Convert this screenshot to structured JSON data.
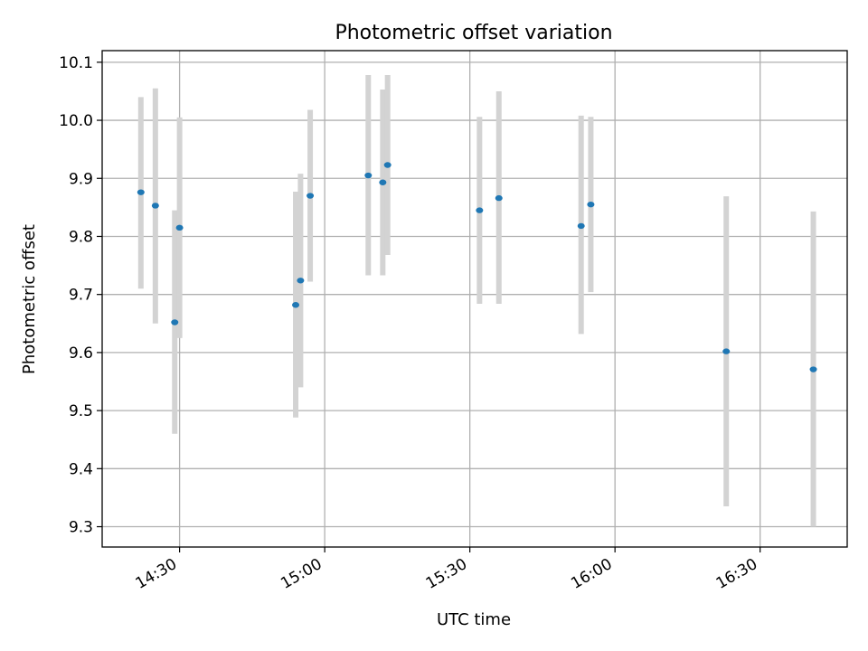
{
  "chart_data": {
    "type": "scatter",
    "title": "Photometric offset variation",
    "xlabel": "UTC time",
    "ylabel": "Photometric offset",
    "xlim": [
      "14:14",
      "16:48"
    ],
    "ylim": [
      9.265,
      10.12
    ],
    "grid": true,
    "x_ticks": [
      "14:30",
      "15:00",
      "15:30",
      "16:00",
      "16:30"
    ],
    "y_ticks": [
      9.3,
      9.4,
      9.5,
      9.6,
      9.7,
      9.8,
      9.9,
      10.0,
      10.1
    ],
    "y_tick_labels": [
      "9.3",
      "9.4",
      "9.5",
      "9.6",
      "9.7",
      "9.8",
      "9.9",
      "10.0",
      "10.1"
    ],
    "point_color": "#1f77b4",
    "errorbar_color": "#d3d3d3",
    "points": [
      {
        "x": "14:22",
        "y": 9.876,
        "ylo": 9.71,
        "yhi": 10.04
      },
      {
        "x": "14:25",
        "y": 9.853,
        "ylo": 9.65,
        "yhi": 10.055
      },
      {
        "x": "14:29",
        "y": 9.652,
        "ylo": 9.46,
        "yhi": 9.845
      },
      {
        "x": "14:30",
        "y": 9.815,
        "ylo": 9.625,
        "yhi": 10.005
      },
      {
        "x": "14:54",
        "y": 9.682,
        "ylo": 9.488,
        "yhi": 9.877
      },
      {
        "x": "14:55",
        "y": 9.724,
        "ylo": 9.54,
        "yhi": 9.908
      },
      {
        "x": "14:57",
        "y": 9.87,
        "ylo": 9.722,
        "yhi": 10.018
      },
      {
        "x": "15:09",
        "y": 9.905,
        "ylo": 9.733,
        "yhi": 10.078
      },
      {
        "x": "15:12",
        "y": 9.893,
        "ylo": 9.733,
        "yhi": 10.053
      },
      {
        "x": "15:13",
        "y": 9.923,
        "ylo": 9.768,
        "yhi": 10.078
      },
      {
        "x": "15:32",
        "y": 9.845,
        "ylo": 9.684,
        "yhi": 10.006
      },
      {
        "x": "15:36",
        "y": 9.866,
        "ylo": 9.684,
        "yhi": 10.05
      },
      {
        "x": "15:53",
        "y": 9.818,
        "ylo": 9.632,
        "yhi": 10.008
      },
      {
        "x": "15:55",
        "y": 9.855,
        "ylo": 9.704,
        "yhi": 10.006
      },
      {
        "x": "16:23",
        "y": 9.602,
        "ylo": 9.335,
        "yhi": 9.869
      },
      {
        "x": "16:41",
        "y": 9.571,
        "ylo": 9.3,
        "yhi": 9.843
      }
    ]
  }
}
